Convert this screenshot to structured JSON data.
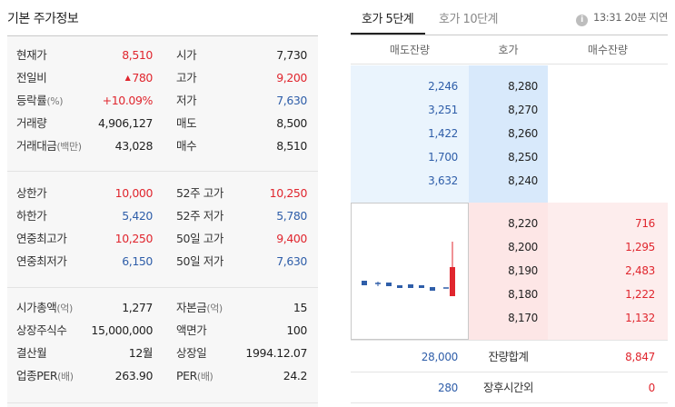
{
  "basic_info": {
    "title": "기본 주가정보",
    "section1": [
      {
        "l1": "현재가",
        "u1": "",
        "v1": "8,510",
        "c1": "red",
        "l2": "시가",
        "u2": "",
        "v2": "7,730",
        "c2": "dark"
      },
      {
        "l1": "전일비",
        "u1": "",
        "v1": "780",
        "c1": "red",
        "arrow": "▲",
        "l2": "고가",
        "u2": "",
        "v2": "9,200",
        "c2": "red"
      },
      {
        "l1": "등락률",
        "u1": "(%)",
        "v1": "+10.09%",
        "c1": "red",
        "l2": "저가",
        "u2": "",
        "v2": "7,630",
        "c2": "blue"
      },
      {
        "l1": "거래량",
        "u1": "",
        "v1": "4,906,127",
        "c1": "dark",
        "l2": "매도",
        "u2": "",
        "v2": "8,500",
        "c2": "dark"
      },
      {
        "l1": "거래대금",
        "u1": "(백만)",
        "v1": "43,028",
        "c1": "dark",
        "l2": "매수",
        "u2": "",
        "v2": "8,510",
        "c2": "dark"
      }
    ],
    "section2": [
      {
        "l1": "상한가",
        "u1": "",
        "v1": "10,000",
        "c1": "red",
        "l2": "52주 고가",
        "u2": "",
        "v2": "10,250",
        "c2": "red"
      },
      {
        "l1": "하한가",
        "u1": "",
        "v1": "5,420",
        "c1": "blue",
        "l2": "52주 저가",
        "u2": "",
        "v2": "5,780",
        "c2": "blue"
      },
      {
        "l1": "연중최고가",
        "u1": "",
        "v1": "10,250",
        "c1": "red",
        "l2": "50일 고가",
        "u2": "",
        "v2": "9,400",
        "c2": "red"
      },
      {
        "l1": "연중최저가",
        "u1": "",
        "v1": "6,150",
        "c1": "blue",
        "l2": "50일 저가",
        "u2": "",
        "v2": "7,630",
        "c2": "blue"
      }
    ],
    "section3": [
      {
        "l1": "시가총액",
        "u1": "(억)",
        "v1": "1,277",
        "c1": "dark",
        "l2": "자본금",
        "u2": "(억)",
        "v2": "15",
        "c2": "dark"
      },
      {
        "l1": "상장주식수",
        "u1": "",
        "v1": "15,000,000",
        "c1": "dark",
        "l2": "액면가",
        "u2": "",
        "v2": "100",
        "c2": "dark"
      },
      {
        "l1": "결산월",
        "u1": "",
        "v1": "12월",
        "c1": "dark",
        "l2": "상장일",
        "u2": "",
        "v2": "1994.12.07",
        "c2": "dark"
      },
      {
        "l1": "업종PER",
        "u1": "(배)",
        "v1": "263.90",
        "c1": "dark",
        "l2": "PER",
        "u2": "(배)",
        "v2": "24.2",
        "c2": "dark"
      }
    ]
  },
  "orderbook": {
    "tabs": [
      {
        "label": "호가 5단계",
        "active": true
      },
      {
        "label": "호가 10단계",
        "active": false
      }
    ],
    "delay_notice": "13:31 20분 지연",
    "headers": [
      "매도잔량",
      "호가",
      "매수잔량"
    ],
    "asks": [
      {
        "qty": "2,246",
        "price": "8,280"
      },
      {
        "qty": "3,251",
        "price": "8,270"
      },
      {
        "qty": "1,422",
        "price": "8,260"
      },
      {
        "qty": "1,700",
        "price": "8,250"
      },
      {
        "qty": "3,632",
        "price": "8,240"
      }
    ],
    "bids": [
      {
        "price": "8,220",
        "qty": "716"
      },
      {
        "price": "8,200",
        "qty": "1,295"
      },
      {
        "price": "8,190",
        "qty": "2,483"
      },
      {
        "price": "8,180",
        "qty": "1,222"
      },
      {
        "price": "8,170",
        "qty": "1,132"
      }
    ],
    "total_label": "잔량합계",
    "total_ask": "28,000",
    "total_bid": "8,847",
    "afterhours_label": "장후시간외",
    "afterhours_ask": "280",
    "afterhours_bid": "0"
  },
  "colors": {
    "up": "#e0262e",
    "down": "#2f5ea9",
    "ask_bg": "#eaf4fd",
    "bid_bg": "#fdeded"
  }
}
